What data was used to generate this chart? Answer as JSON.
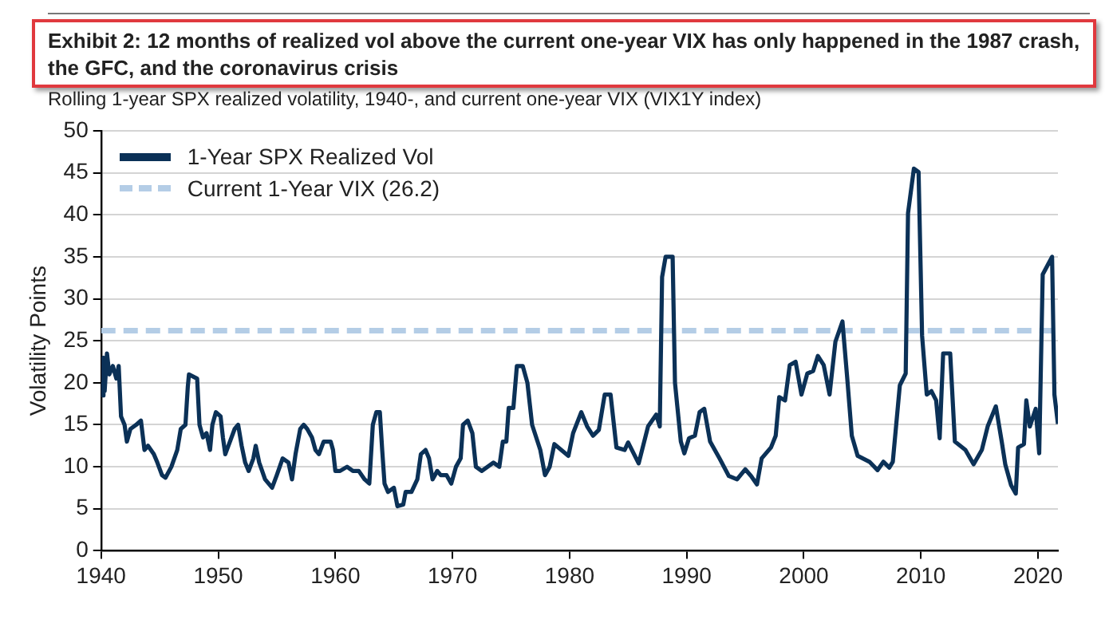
{
  "chart_data": {
    "type": "line",
    "title": "Exhibit 2: 12 months of realized vol above the current one-year VIX has only happened in the 1987 crash, the GFC, and the coronavirus crisis",
    "subtitle": "Rolling 1-year SPX realized volatility, 1940-, and current one-year VIX (VIX1Y index)",
    "ylabel": "Volatility Points",
    "series": [
      {
        "name": "1-Year SPX Realized Vol",
        "color": "#0b3157",
        "x": [
          1940.0,
          1940.1,
          1940.2,
          1940.3,
          1940.5,
          1940.7,
          1941.0,
          1941.3,
          1941.5,
          1941.7,
          1942.0,
          1942.2,
          1942.5,
          1943.0,
          1943.4,
          1943.7,
          1944.0,
          1944.5,
          1944.8,
          1945.2,
          1945.5,
          1946.0,
          1946.5,
          1946.8,
          1947.2,
          1947.4,
          1947.5,
          1948.2,
          1948.4,
          1948.7,
          1949.0,
          1949.3,
          1949.5,
          1949.8,
          1950.2,
          1950.4,
          1950.6,
          1951.0,
          1951.4,
          1951.7,
          1952.0,
          1952.3,
          1952.6,
          1953.0,
          1953.2,
          1953.5,
          1954.0,
          1954.6,
          1955.0,
          1955.5,
          1956.0,
          1956.3,
          1956.6,
          1957.0,
          1957.3,
          1957.6,
          1958.0,
          1958.3,
          1958.6,
          1959.0,
          1959.6,
          1959.8,
          1960.0,
          1960.4,
          1961.0,
          1961.5,
          1962.0,
          1962.5,
          1962.9,
          1963.2,
          1963.5,
          1963.8,
          1964.0,
          1964.2,
          1964.5,
          1965.0,
          1965.3,
          1965.8,
          1966.0,
          1966.5,
          1967.0,
          1967.3,
          1967.7,
          1968.0,
          1968.3,
          1968.7,
          1969.0,
          1969.5,
          1969.9,
          1970.3,
          1970.7,
          1970.9,
          1971.3,
          1971.7,
          1972.0,
          1972.5,
          1973.0,
          1973.5,
          1974.0,
          1974.3,
          1974.6,
          1974.8,
          1975.2,
          1975.5,
          1976.0,
          1976.4,
          1976.8,
          1977.5,
          1977.9,
          1978.3,
          1978.7,
          1979.9,
          1980.3,
          1981.0,
          1981.5,
          1982.0,
          1982.5,
          1983.0,
          1983.5,
          1984.0,
          1984.7,
          1985.0,
          1985.9,
          1986.7,
          1987.4,
          1987.7,
          1987.9,
          1988.2,
          1988.8,
          1989.0,
          1989.5,
          1989.8,
          1990.2,
          1990.7,
          1991.1,
          1991.5,
          1992.0,
          1992.8,
          1993.6,
          1994.3,
          1995.0,
          1995.5,
          1996.0,
          1996.4,
          1997.2,
          1997.6,
          1997.9,
          1998.4,
          1998.8,
          1999.3,
          1999.8,
          2000.3,
          2000.8,
          2001.2,
          2001.7,
          2002.2,
          2002.7,
          2003.3,
          2003.7,
          2004.1,
          2004.6,
          2005.6,
          2006.3,
          2006.8,
          2007.3,
          2007.6,
          2008.2,
          2008.7,
          2008.9,
          2009.4,
          2009.8,
          2010.1,
          2010.5,
          2010.9,
          2011.3,
          2011.6,
          2011.9,
          2012.5,
          2012.9,
          2013.8,
          2014.5,
          2015.2,
          2015.7,
          2016.4,
          2016.9,
          2017.2,
          2017.7,
          2018.1,
          2018.3,
          2018.8,
          2019.0,
          2019.3,
          2019.8,
          2020.1,
          2020.4,
          2021.2,
          2021.4,
          2021.7
        ],
        "values": [
          20,
          18.5,
          23,
          19,
          23.5,
          21,
          22,
          20.5,
          22,
          16,
          15,
          13,
          14.5,
          15,
          15.5,
          12,
          12.5,
          11.5,
          10.5,
          9,
          8.7,
          10,
          12,
          14.5,
          15,
          19.5,
          21,
          20.5,
          15,
          13.5,
          14,
          12,
          15,
          16.5,
          16,
          13.5,
          11.5,
          13,
          14.5,
          15,
          12.5,
          10.5,
          9.5,
          11,
          12.5,
          10.5,
          8.5,
          7.5,
          9,
          11,
          10.5,
          8.5,
          11.5,
          14.5,
          15,
          14.5,
          13.5,
          12,
          11.5,
          13,
          13,
          12,
          9.5,
          9.5,
          10,
          9.5,
          9.5,
          8.5,
          8,
          15,
          16.5,
          16.5,
          12,
          8,
          7,
          7.5,
          5.3,
          5.5,
          7,
          7,
          8.5,
          11.5,
          12,
          11,
          8.5,
          9.5,
          9,
          9,
          8,
          10,
          11,
          15,
          15.5,
          14,
          10,
          9.5,
          10,
          10.5,
          10,
          13,
          13,
          17,
          17,
          22,
          22,
          20,
          15,
          12,
          9,
          10,
          12.7,
          11.3,
          14,
          16.5,
          14.8,
          13.7,
          14.4,
          18.6,
          18.6,
          12.3,
          12,
          12.9,
          10.4,
          14.8,
          16.2,
          14.8,
          32.6,
          35,
          35,
          20,
          13,
          11.6,
          13.4,
          13.7,
          16.5,
          16.9,
          13,
          11,
          8.9,
          8.5,
          9.7,
          8.9,
          7.9,
          11,
          12.3,
          13.7,
          18.3,
          17.9,
          22.1,
          22.5,
          18.6,
          21.1,
          21.4,
          23.2,
          22.1,
          18.6,
          24.9,
          27.3,
          20.7,
          13.7,
          11.3,
          10.6,
          9.6,
          10.6,
          9.9,
          10.6,
          19.7,
          21.1,
          40.2,
          45.5,
          45.1,
          25.6,
          18.6,
          19,
          17.9,
          13.4,
          23.5,
          23.5,
          13,
          12,
          10.3,
          12,
          14.8,
          17.2,
          13,
          10.3,
          7.8,
          6.8,
          12.3,
          12.7,
          17.9,
          14.8,
          16.9,
          11.6,
          32.9,
          35,
          18.6,
          15.1
        ]
      }
    ],
    "ref_lines": [
      {
        "axis": "y",
        "value": 26.2,
        "label": "Current 1-Year VIX (26.2)",
        "color": "#b4cde6",
        "line_style": "dashed"
      }
    ],
    "xlim": [
      1940,
      2021.7
    ],
    "xticks": [
      1940,
      1950,
      1960,
      1970,
      1980,
      1990,
      2000,
      2010,
      2020
    ],
    "ylim": [
      0,
      50
    ],
    "yticks": [
      0,
      5,
      10,
      15,
      20,
      25,
      30,
      35,
      40,
      45,
      50
    ],
    "grid": "y",
    "legend": "top left",
    "marker": "none",
    "line_style": "solid"
  }
}
